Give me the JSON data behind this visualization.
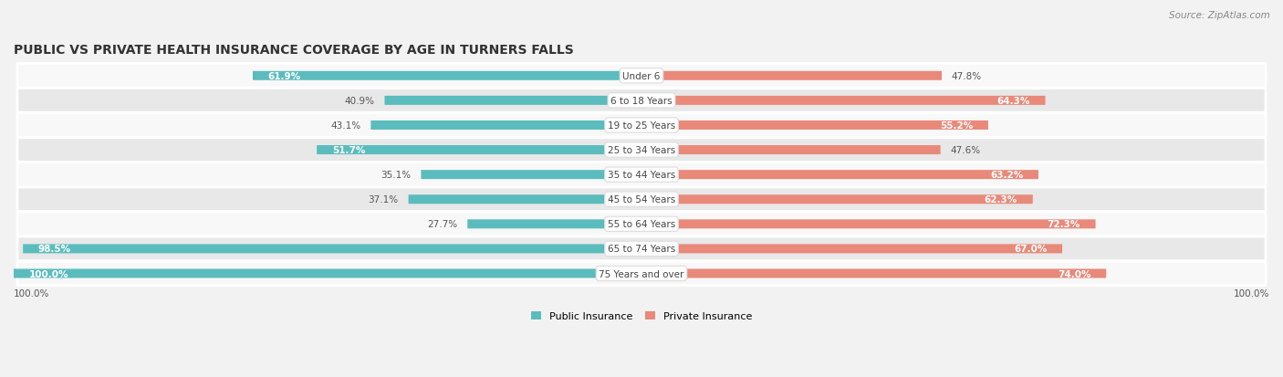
{
  "title": "Public vs Private Health Insurance Coverage by Age in Turners Falls",
  "source": "Source: ZipAtlas.com",
  "categories": [
    "Under 6",
    "6 to 18 Years",
    "19 to 25 Years",
    "25 to 34 Years",
    "35 to 44 Years",
    "45 to 54 Years",
    "55 to 64 Years",
    "65 to 74 Years",
    "75 Years and over"
  ],
  "public_values": [
    61.9,
    40.9,
    43.1,
    51.7,
    35.1,
    37.1,
    27.7,
    98.5,
    100.0
  ],
  "private_values": [
    47.8,
    64.3,
    55.2,
    47.6,
    63.2,
    62.3,
    72.3,
    67.0,
    74.0
  ],
  "public_color": "#5bbcbe",
  "private_color": "#e8897a",
  "bg_color": "#f2f2f2",
  "row_bg_light": "#f8f8f8",
  "row_bg_dark": "#e8e8e8",
  "title_fontsize": 10,
  "source_fontsize": 7.5,
  "label_fontsize": 7.5,
  "value_fontsize": 7.5,
  "max_value": 100.0,
  "legend_public": "Public Insurance",
  "legend_private": "Private Insurance",
  "axis_label": "100.0%"
}
